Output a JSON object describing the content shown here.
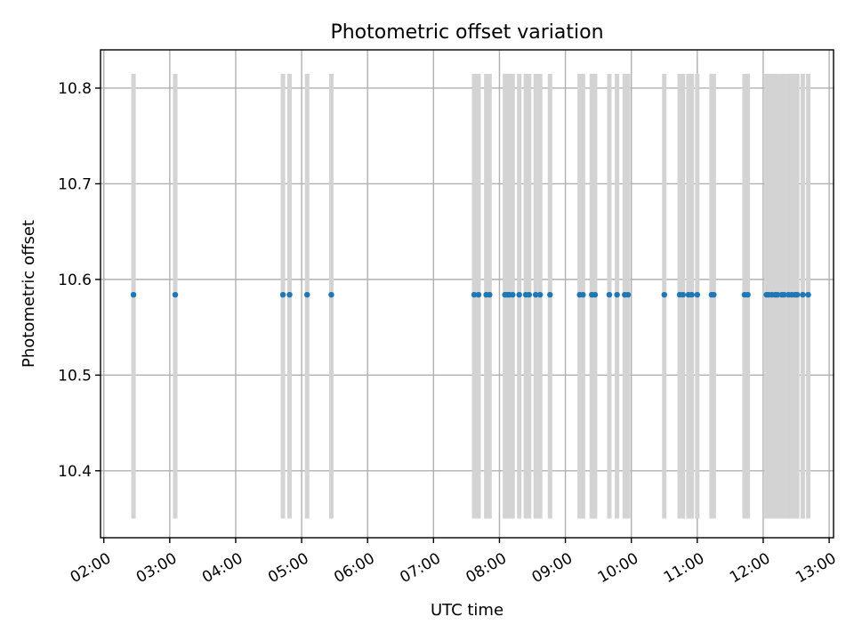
{
  "chart_data": {
    "type": "scatter",
    "title": "Photometric offset variation",
    "xlabel": "UTC time",
    "ylabel": "Photometric offset",
    "xlim": [
      "01:57",
      "13:04"
    ],
    "ylim": [
      10.33,
      10.84
    ],
    "x_ticks": [
      "02:00",
      "03:00",
      "04:00",
      "05:00",
      "06:00",
      "07:00",
      "08:00",
      "09:00",
      "10:00",
      "11:00",
      "12:00",
      "13:00"
    ],
    "y_ticks": [
      10.4,
      10.5,
      10.6,
      10.7,
      10.8
    ],
    "grid": true,
    "colors": {
      "points": "#1f77b4",
      "range_bars": "#d3d3d3"
    },
    "range_bars": {
      "ymin": 10.35,
      "ymax": 10.815,
      "x": [
        "02:27",
        "03:05",
        "04:43",
        "04:49",
        "05:05",
        "05:27",
        "07:37",
        "07:41",
        "07:48",
        "07:51",
        "08:05",
        "08:07",
        "08:09",
        "08:12",
        "08:18",
        "08:24",
        "08:27",
        "08:33",
        "08:37",
        "08:46",
        "09:13",
        "09:16",
        "09:24",
        "09:27",
        "09:40",
        "09:47",
        "09:54",
        "09:57",
        "10:30",
        "10:44",
        "10:47",
        "10:52",
        "10:55",
        "11:00",
        "11:13",
        "11:15",
        "11:43",
        "11:46",
        "12:03",
        "12:05",
        "12:08",
        "12:11",
        "12:13",
        "12:17",
        "12:19",
        "12:23",
        "12:26",
        "12:29",
        "12:31",
        "12:36",
        "12:41"
      ]
    },
    "series": [
      {
        "y": 10.584,
        "x": [
          "02:27",
          "03:05",
          "04:43",
          "04:49",
          "05:05",
          "05:27",
          "07:37",
          "07:41",
          "07:48",
          "07:51",
          "08:05",
          "08:07",
          "08:09",
          "08:12",
          "08:18",
          "08:24",
          "08:27",
          "08:33",
          "08:37",
          "08:46",
          "09:13",
          "09:16",
          "09:24",
          "09:27",
          "09:40",
          "09:47",
          "09:54",
          "09:57",
          "10:30",
          "10:44",
          "10:47",
          "10:52",
          "10:55",
          "11:00",
          "11:13",
          "11:15",
          "11:43",
          "11:46",
          "12:03",
          "12:05",
          "12:08",
          "12:11",
          "12:13",
          "12:17",
          "12:19",
          "12:23",
          "12:26",
          "12:29",
          "12:31",
          "12:36",
          "12:41"
        ]
      }
    ]
  }
}
